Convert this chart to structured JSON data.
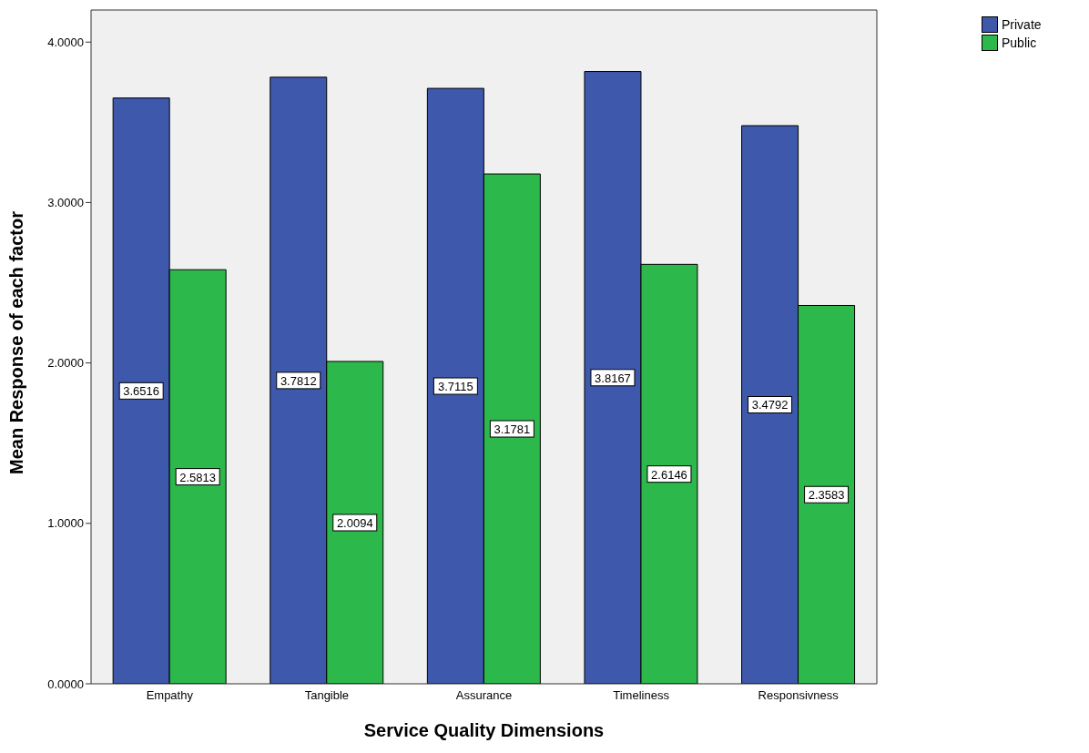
{
  "chart_data": {
    "type": "bar",
    "xlabel": "Service Quality Dimensions",
    "ylabel": "Mean Response of each factor",
    "categories": [
      "Empathy",
      "Tangible",
      "Assurance",
      "Timeliness",
      "Responsivness"
    ],
    "series": [
      {
        "name": "Private",
        "color": "#3e58ac",
        "values": [
          3.6516,
          3.7812,
          3.7115,
          3.8167,
          3.4792
        ]
      },
      {
        "name": "Public",
        "color": "#2db84b",
        "values": [
          2.5813,
          2.0094,
          3.1781,
          2.6146,
          2.3583
        ]
      }
    ],
    "ylim": [
      0,
      4.2
    ],
    "yticks": [
      {
        "value": 0,
        "label": "0.0000"
      },
      {
        "value": 1,
        "label": "1.0000"
      },
      {
        "value": 2,
        "label": "2.0000"
      },
      {
        "value": 3,
        "label": "3.0000"
      },
      {
        "value": 4,
        "label": "4.0000"
      }
    ],
    "data_labels": true,
    "legend": "top right",
    "grid": false
  }
}
